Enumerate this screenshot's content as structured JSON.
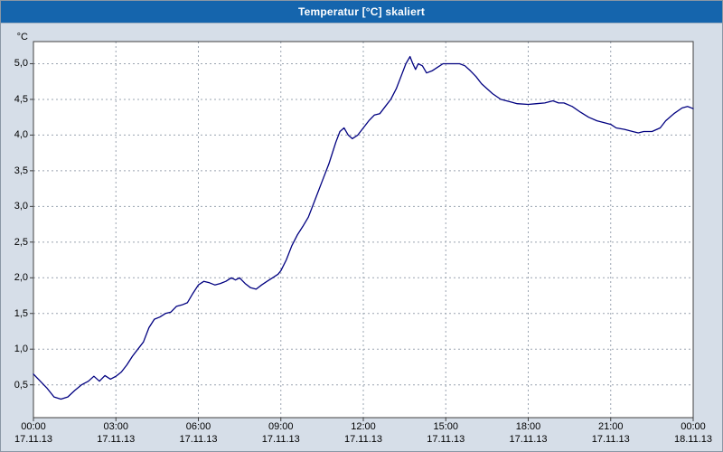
{
  "window": {
    "title": "Temperatur [°C] skaliert"
  },
  "colors": {
    "title_bar": "#1565ad",
    "background": "#d6dee8",
    "plot_background": "#ffffff",
    "grid": "#9aa4b0",
    "plot_border": "#404040",
    "line": "#000080"
  },
  "chart_data": {
    "type": "line",
    "title": "Temperatur [°C] skaliert",
    "xlabel": "",
    "ylabel": "°C",
    "line_color": "#000080",
    "grid": "dashed",
    "legend_position": "none",
    "xlim": [
      0,
      24
    ],
    "ylim": [
      0.04,
      5.31
    ],
    "y_ticks": [
      {
        "label": "5,0",
        "value": 5.0
      },
      {
        "label": "4,5",
        "value": 4.5
      },
      {
        "label": "4,0",
        "value": 4.0
      },
      {
        "label": "3,5",
        "value": 3.5
      },
      {
        "label": "3,0",
        "value": 3.0
      },
      {
        "label": "2,5",
        "value": 2.5
      },
      {
        "label": "2,0",
        "value": 2.0
      },
      {
        "label": "1,5",
        "value": 1.5
      },
      {
        "label": "1,0",
        "value": 1.0
      },
      {
        "label": "0,5",
        "value": 0.5
      }
    ],
    "x_ticks": [
      {
        "time": "00:00",
        "date": "17.11.13",
        "hour": 0
      },
      {
        "time": "03:00",
        "date": "17.11.13",
        "hour": 3
      },
      {
        "time": "06:00",
        "date": "17.11.13",
        "hour": 6
      },
      {
        "time": "09:00",
        "date": "17.11.13",
        "hour": 9
      },
      {
        "time": "12:00",
        "date": "17.11.13",
        "hour": 12
      },
      {
        "time": "15:00",
        "date": "17.11.13",
        "hour": 15
      },
      {
        "time": "18:00",
        "date": "17.11.13",
        "hour": 18
      },
      {
        "time": "21:00",
        "date": "17.11.13",
        "hour": 21
      },
      {
        "time": "00:00",
        "date": "18.11.13",
        "hour": 24
      }
    ],
    "series": [
      {
        "name": "Temperatur",
        "points": [
          [
            0,
            0.65
          ],
          [
            0.25,
            0.55
          ],
          [
            0.5,
            0.45
          ],
          [
            0.75,
            0.33
          ],
          [
            1,
            0.3
          ],
          [
            1.25,
            0.33
          ],
          [
            1.5,
            0.42
          ],
          [
            1.75,
            0.5
          ],
          [
            2,
            0.55
          ],
          [
            2.2,
            0.62
          ],
          [
            2.4,
            0.55
          ],
          [
            2.6,
            0.63
          ],
          [
            2.8,
            0.58
          ],
          [
            3,
            0.62
          ],
          [
            3.2,
            0.68
          ],
          [
            3.4,
            0.78
          ],
          [
            3.6,
            0.9
          ],
          [
            3.8,
            1.0
          ],
          [
            4,
            1.1
          ],
          [
            4.2,
            1.3
          ],
          [
            4.4,
            1.42
          ],
          [
            4.6,
            1.45
          ],
          [
            4.8,
            1.5
          ],
          [
            5,
            1.52
          ],
          [
            5.2,
            1.6
          ],
          [
            5.4,
            1.62
          ],
          [
            5.6,
            1.65
          ],
          [
            5.8,
            1.78
          ],
          [
            6,
            1.9
          ],
          [
            6.2,
            1.95
          ],
          [
            6.4,
            1.93
          ],
          [
            6.6,
            1.9
          ],
          [
            6.8,
            1.92
          ],
          [
            7,
            1.95
          ],
          [
            7.2,
            2.0
          ],
          [
            7.35,
            1.97
          ],
          [
            7.5,
            2.0
          ],
          [
            7.7,
            1.92
          ],
          [
            7.9,
            1.86
          ],
          [
            8.1,
            1.84
          ],
          [
            8.3,
            1.9
          ],
          [
            8.5,
            1.95
          ],
          [
            8.7,
            2.0
          ],
          [
            8.9,
            2.05
          ],
          [
            9,
            2.1
          ],
          [
            9.2,
            2.25
          ],
          [
            9.4,
            2.45
          ],
          [
            9.6,
            2.6
          ],
          [
            9.8,
            2.72
          ],
          [
            10,
            2.85
          ],
          [
            10.25,
            3.1
          ],
          [
            10.5,
            3.35
          ],
          [
            10.75,
            3.6
          ],
          [
            11,
            3.9
          ],
          [
            11.15,
            4.05
          ],
          [
            11.3,
            4.1
          ],
          [
            11.45,
            4.0
          ],
          [
            11.6,
            3.95
          ],
          [
            11.8,
            4.0
          ],
          [
            12,
            4.1
          ],
          [
            12.2,
            4.2
          ],
          [
            12.4,
            4.28
          ],
          [
            12.6,
            4.3
          ],
          [
            12.8,
            4.4
          ],
          [
            13,
            4.5
          ],
          [
            13.2,
            4.65
          ],
          [
            13.4,
            4.85
          ],
          [
            13.55,
            5.0
          ],
          [
            13.7,
            5.1
          ],
          [
            13.8,
            5.0
          ],
          [
            13.9,
            4.92
          ],
          [
            14,
            5.0
          ],
          [
            14.15,
            4.97
          ],
          [
            14.3,
            4.87
          ],
          [
            14.5,
            4.9
          ],
          [
            14.7,
            4.95
          ],
          [
            14.9,
            5.0
          ],
          [
            15.1,
            5.0
          ],
          [
            15.3,
            5.0
          ],
          [
            15.5,
            5.0
          ],
          [
            15.7,
            4.97
          ],
          [
            15.9,
            4.9
          ],
          [
            16.1,
            4.82
          ],
          [
            16.3,
            4.72
          ],
          [
            16.5,
            4.65
          ],
          [
            16.7,
            4.58
          ],
          [
            17,
            4.5
          ],
          [
            17.3,
            4.47
          ],
          [
            17.6,
            4.44
          ],
          [
            18,
            4.43
          ],
          [
            18.3,
            4.44
          ],
          [
            18.6,
            4.45
          ],
          [
            18.9,
            4.48
          ],
          [
            19.1,
            4.45
          ],
          [
            19.3,
            4.45
          ],
          [
            19.6,
            4.4
          ],
          [
            19.9,
            4.32
          ],
          [
            20.2,
            4.25
          ],
          [
            20.5,
            4.2
          ],
          [
            20.8,
            4.17
          ],
          [
            21,
            4.15
          ],
          [
            21.2,
            4.1
          ],
          [
            21.5,
            4.08
          ],
          [
            21.8,
            4.05
          ],
          [
            22,
            4.03
          ],
          [
            22.2,
            4.05
          ],
          [
            22.5,
            4.05
          ],
          [
            22.8,
            4.1
          ],
          [
            23,
            4.2
          ],
          [
            23.3,
            4.3
          ],
          [
            23.6,
            4.38
          ],
          [
            23.8,
            4.4
          ],
          [
            24,
            4.37
          ]
        ]
      }
    ]
  }
}
